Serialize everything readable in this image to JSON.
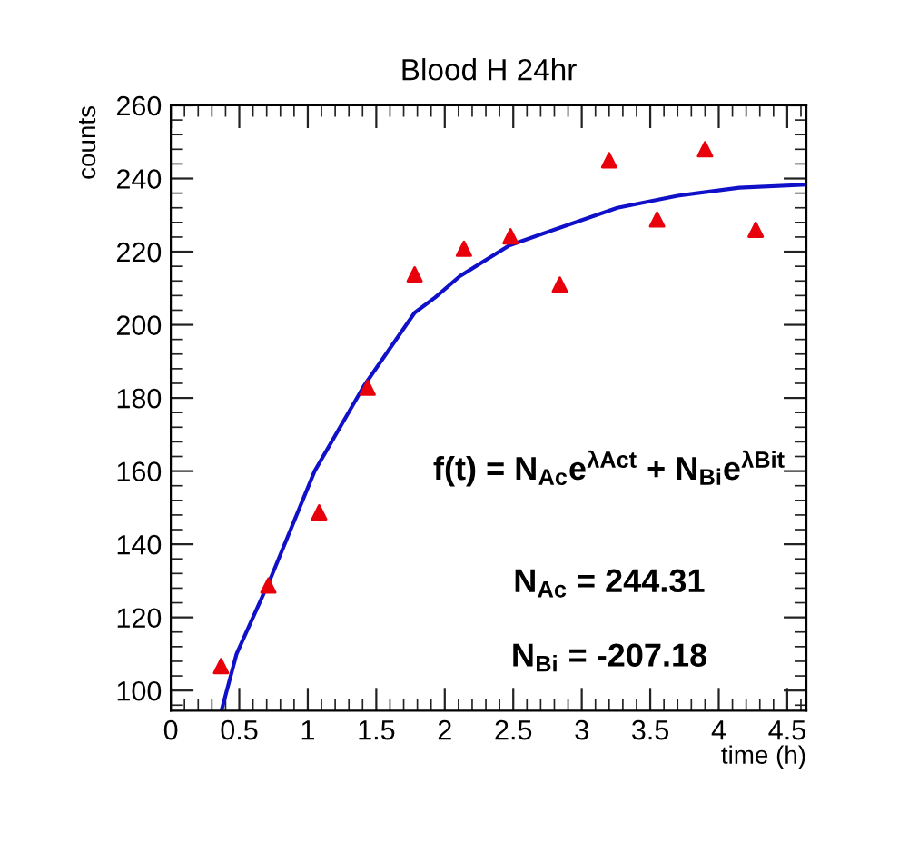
{
  "chart_data": {
    "type": "scatter",
    "title": "Blood H 24hr",
    "xlabel": "time (h)",
    "ylabel": "counts",
    "series": [
      {
        "color": "#e8000b",
        "marker": "triangle",
        "x": [
          0.367,
          0.712,
          1.083,
          1.437,
          1.78,
          2.14,
          2.48,
          2.84,
          3.2,
          3.55,
          3.9,
          4.27
        ],
        "values": [
          106.7,
          128.7,
          148.7,
          182.8,
          213.8,
          220.8,
          224.2,
          211,
          245,
          228.8,
          248,
          226
        ]
      },
      {
        "type": "line",
        "color": "#1010c8",
        "marker": "none",
        "line_style": "solid",
        "x": [
          0.37,
          0.48,
          0.74,
          1.05,
          1.41,
          1.78,
          1.93,
          2.11,
          2.47,
          2.82,
          3.26,
          3.7,
          4.15,
          4.63
        ],
        "values": [
          94.5,
          110,
          131.7,
          160,
          183.3,
          203.3,
          207.5,
          213.3,
          221.7,
          226.3,
          232,
          235.3,
          237.5,
          238.3
        ]
      }
    ],
    "xlim": [
      0,
      4.64
    ],
    "ylim": [
      94.5,
      260
    ],
    "xticks": [
      0,
      0.5,
      1,
      1.5,
      2,
      2.5,
      3,
      3.5,
      4,
      4.5
    ],
    "yticks": [
      100,
      120,
      140,
      160,
      180,
      200,
      220,
      240,
      260
    ],
    "grid": false,
    "legend": false,
    "annotations": [
      "f(t) = N$_{Ac}$e$^{λAct}$ + N$_{Bi}$e$^{λBit}$",
      "N$_{Ac}$ = 244.31",
      "N$_{Bi}$ = -207.18"
    ]
  }
}
